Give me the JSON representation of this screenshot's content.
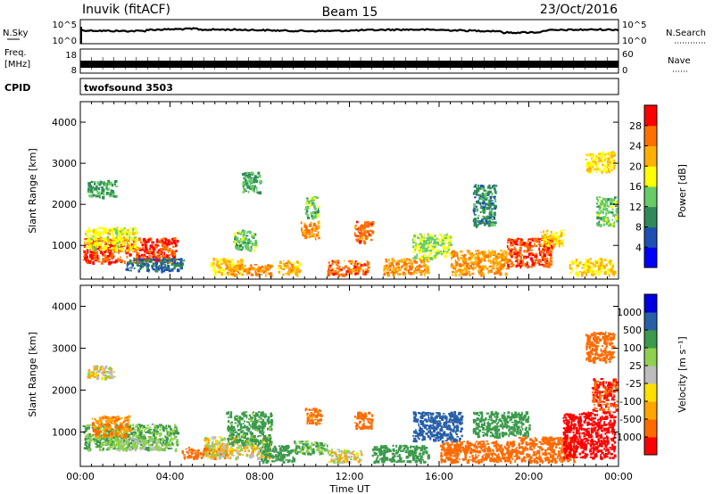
{
  "header": {
    "station": "Inuvik (fitACF)",
    "beam": "Beam 15",
    "date": "23/Oct/2016"
  },
  "summary_panels": {
    "sky_label": "N.Sky",
    "sky_ticks": [
      "10^5",
      "10^0"
    ],
    "search_label": "N.Search",
    "search_ticks": [
      "10^5",
      "10^0"
    ],
    "freq_label_line1": "Freq.",
    "freq_label_line2": "[MHz]",
    "freq_ticks": [
      "18",
      "8"
    ],
    "nave_label": "Nave",
    "nave_ticks": [
      "60",
      "0"
    ],
    "cpid_label": "CPID",
    "cpid_value": "twofsound 3503"
  },
  "colors": {
    "power_scale": [
      "#0000ff",
      "#1e50b4",
      "#2e8b57",
      "#66cc66",
      "#ffff00",
      "#ffb000",
      "#ff7000",
      "#ff0000"
    ],
    "velocity_scale": [
      "#ff0000",
      "#ff6a00",
      "#ffa500",
      "#ffe000",
      "#bdbdbd",
      "#8ed14e",
      "#3c9a4c",
      "#2860a8",
      "#0000e0"
    ],
    "ground_scatter": "#bdbdbd"
  },
  "chart_data": [
    {
      "type": "heatmap",
      "name": "power",
      "xlabel": "",
      "ylabel": "Slant Range [km]",
      "xlim": [
        0,
        24
      ],
      "ylim": [
        180,
        4500
      ],
      "yticks": [
        "1000",
        "2000",
        "3000",
        "4000"
      ],
      "colorbar": {
        "label": "Power [dB]",
        "ticks": [
          "4",
          "8",
          "12",
          "16",
          "20",
          "24",
          "28"
        ],
        "range": [
          0,
          32
        ]
      },
      "regions": [
        {
          "x": [
            0.1,
            4.3
          ],
          "y": [
            600,
            1200
          ],
          "v": 28
        },
        {
          "x": [
            0.2,
            2.5
          ],
          "y": [
            900,
            1450
          ],
          "v": 18
        },
        {
          "x": [
            0.3,
            1.6
          ],
          "y": [
            2200,
            2600
          ],
          "v": 12
        },
        {
          "x": [
            2.0,
            4.6
          ],
          "y": [
            400,
            700
          ],
          "v": 8
        },
        {
          "x": [
            5.8,
            7.2
          ],
          "y": [
            300,
            700
          ],
          "v": 20
        },
        {
          "x": [
            6.5,
            8.5
          ],
          "y": [
            300,
            550
          ],
          "v": 24
        },
        {
          "x": [
            6.8,
            7.8
          ],
          "y": [
            900,
            1400
          ],
          "v": 14
        },
        {
          "x": [
            7.2,
            8.0
          ],
          "y": [
            2300,
            2800
          ],
          "v": 12
        },
        {
          "x": [
            8.8,
            9.8
          ],
          "y": [
            300,
            650
          ],
          "v": 22
        },
        {
          "x": [
            9.8,
            10.6
          ],
          "y": [
            1200,
            1600
          ],
          "v": 24
        },
        {
          "x": [
            10.0,
            10.6
          ],
          "y": [
            1700,
            2200
          ],
          "v": 14
        },
        {
          "x": [
            11.0,
            12.8
          ],
          "y": [
            300,
            650
          ],
          "v": 26
        },
        {
          "x": [
            12.2,
            13.0
          ],
          "y": [
            1100,
            1600
          ],
          "v": 26
        },
        {
          "x": [
            13.5,
            15.5
          ],
          "y": [
            300,
            700
          ],
          "v": 24
        },
        {
          "x": [
            14.8,
            16.5
          ],
          "y": [
            700,
            1300
          ],
          "v": 16
        },
        {
          "x": [
            16.5,
            19.0
          ],
          "y": [
            300,
            900
          ],
          "v": 24
        },
        {
          "x": [
            17.5,
            18.5
          ],
          "y": [
            1500,
            2500
          ],
          "v": 10
        },
        {
          "x": [
            19.0,
            21.0
          ],
          "y": [
            500,
            1200
          ],
          "v": 28
        },
        {
          "x": [
            20.5,
            21.5
          ],
          "y": [
            1000,
            1400
          ],
          "v": 20
        },
        {
          "x": [
            21.8,
            23.8
          ],
          "y": [
            300,
            700
          ],
          "v": 20
        },
        {
          "x": [
            22.5,
            23.8
          ],
          "y": [
            2800,
            3300
          ],
          "v": 20
        },
        {
          "x": [
            23.0,
            23.9
          ],
          "y": [
            1500,
            2200
          ],
          "v": 14
        }
      ]
    },
    {
      "type": "heatmap",
      "name": "velocity",
      "xlabel": "Time UT",
      "ylabel": "Slant Range [km]",
      "xlim": [
        0,
        24
      ],
      "ylim": [
        180,
        4500
      ],
      "xticks": [
        "00:00",
        "04:00",
        "08:00",
        "12:00",
        "16:00",
        "20:00",
        "00:00"
      ],
      "yticks": [
        "1000",
        "2000",
        "3000",
        "4000"
      ],
      "colorbar": {
        "label": "Velocity [m s⁻¹]",
        "ticks": [
          "1000",
          "500",
          "100",
          "25",
          "-25",
          "-100",
          "-500",
          "-1000"
        ],
        "range": [
          -1200,
          1200
        ]
      },
      "regions": [
        {
          "x": [
            0.1,
            4.3
          ],
          "y": [
            600,
            1200
          ],
          "v": 100
        },
        {
          "x": [
            0.5,
            2.2
          ],
          "y": [
            900,
            1400
          ],
          "v": -100
        },
        {
          "x": [
            1.5,
            3.5
          ],
          "y": [
            600,
            900
          ],
          "v": 50
        },
        {
          "x": [
            0.3,
            1.5
          ],
          "y": [
            2300,
            2600
          ],
          "v": 0
        },
        {
          "x": [
            4.5,
            6.5
          ],
          "y": [
            400,
            650
          ],
          "v": -300
        },
        {
          "x": [
            5.5,
            8.5
          ],
          "y": [
            400,
            900
          ],
          "v": 0
        },
        {
          "x": [
            6.5,
            8.5
          ],
          "y": [
            700,
            1500
          ],
          "v": 150
        },
        {
          "x": [
            8.0,
            9.5
          ],
          "y": [
            300,
            700
          ],
          "v": 200
        },
        {
          "x": [
            9.5,
            11.0
          ],
          "y": [
            500,
            800
          ],
          "v": 100
        },
        {
          "x": [
            10.0,
            10.7
          ],
          "y": [
            1200,
            1600
          ],
          "v": -150
        },
        {
          "x": [
            11.0,
            12.5
          ],
          "y": [
            300,
            600
          ],
          "v": 0
        },
        {
          "x": [
            12.2,
            13.0
          ],
          "y": [
            1100,
            1500
          ],
          "v": -200
        },
        {
          "x": [
            13.0,
            15.5
          ],
          "y": [
            300,
            700
          ],
          "v": 200
        },
        {
          "x": [
            14.8,
            17.0
          ],
          "y": [
            800,
            1500
          ],
          "v": 700
        },
        {
          "x": [
            16.0,
            19.5
          ],
          "y": [
            300,
            800
          ],
          "v": -200
        },
        {
          "x": [
            17.5,
            20.0
          ],
          "y": [
            900,
            1500
          ],
          "v": 400
        },
        {
          "x": [
            19.5,
            22.0
          ],
          "y": [
            300,
            900
          ],
          "v": -300
        },
        {
          "x": [
            21.5,
            23.8
          ],
          "y": [
            400,
            1500
          ],
          "v": -600
        },
        {
          "x": [
            22.8,
            23.9
          ],
          "y": [
            1500,
            2300
          ],
          "v": -500
        },
        {
          "x": [
            22.5,
            23.8
          ],
          "y": [
            2700,
            3400
          ],
          "v": -400
        }
      ]
    }
  ]
}
